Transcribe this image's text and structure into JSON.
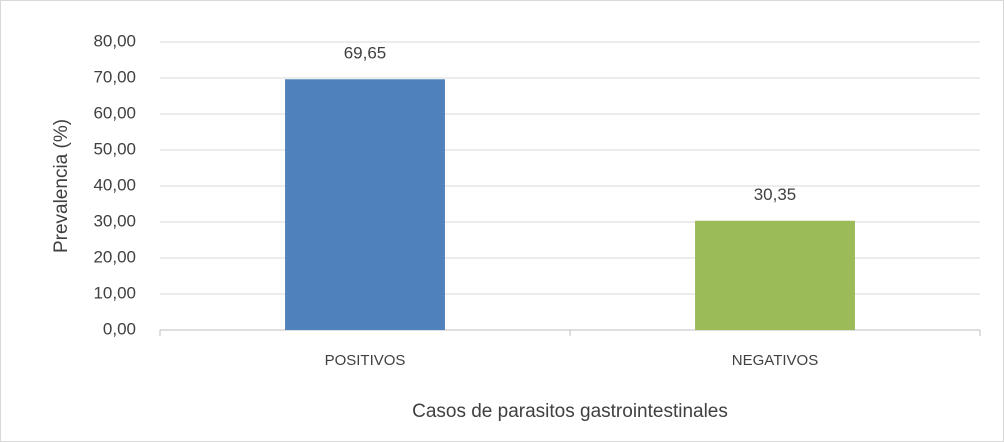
{
  "chart_data": {
    "type": "bar",
    "categories": [
      "POSITIVOS",
      "NEGATIVOS"
    ],
    "values": [
      69.65,
      30.35
    ],
    "value_labels": [
      "69,65",
      "30,35"
    ],
    "colors": [
      "#4f81bd",
      "#9bbb59"
    ],
    "ylim": [
      0,
      80
    ],
    "yticks": [
      {
        "value": 0,
        "label": "0,00"
      },
      {
        "value": 10,
        "label": "10,00"
      },
      {
        "value": 20,
        "label": "20,00"
      },
      {
        "value": 30,
        "label": "30,00"
      },
      {
        "value": 40,
        "label": "40,00"
      },
      {
        "value": 50,
        "label": "50,00"
      },
      {
        "value": 60,
        "label": "60,00"
      },
      {
        "value": 70,
        "label": "70,00"
      },
      {
        "value": 80,
        "label": "80,00"
      }
    ],
    "ylabel": "Prevalencia (%)",
    "xlabel": "Casos de parasitos gastrointestinales",
    "grid": true
  }
}
